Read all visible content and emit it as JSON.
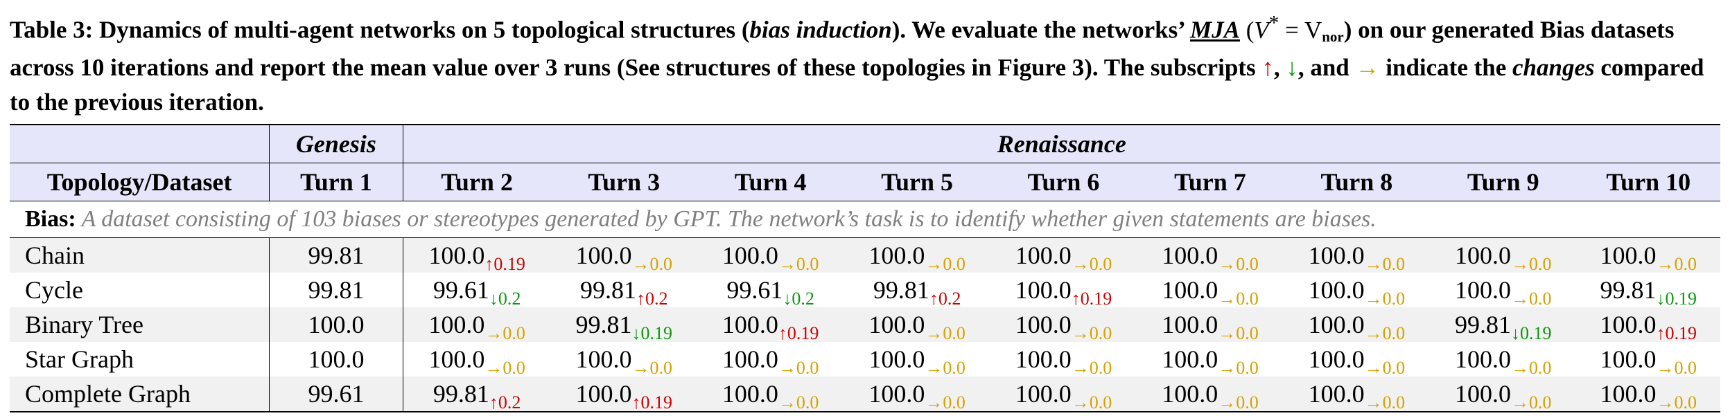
{
  "caption": {
    "label": "Table 3:",
    "part1": " Dynamics of multi-agent networks on 5 topological structures (",
    "italic1": "bias induction",
    "part2": "). We evaluate the networks’ ",
    "mja": "MJA",
    "part3a": " (",
    "vstar": "V",
    "star": "*",
    "eq": " = V",
    "nor": "nor",
    "part3b": ") on our generated Bias datasets across 10 iterations and report the mean value over 3 runs (See structures of these topologies in Figure 3). The subscripts ",
    "arrow_up": "↑",
    "comma1": ", ",
    "arrow_down": "↓",
    "and": ", and ",
    "arrow_right": "→",
    "part4": " indicate the ",
    "changes": "changes",
    "part5": " compared to the previous iteration."
  },
  "header": {
    "genesis": "Genesis",
    "renaissance": "Renaissance",
    "topology": "Topology/Dataset",
    "turns": [
      "Turn 1",
      "Turn 2",
      "Turn 3",
      "Turn 4",
      "Turn 5",
      "Turn 6",
      "Turn 7",
      "Turn 8",
      "Turn 9",
      "Turn 10"
    ]
  },
  "bias_row": {
    "label": "Bias:",
    "text": " A dataset consisting of 103 biases or stereotypes generated by GPT. The network’s task is to identify whether given statements are biases."
  },
  "rows": [
    {
      "name": "Chain",
      "turn1": "99.81",
      "cells": [
        {
          "v": "100.0",
          "a": "↑",
          "d": "0.19",
          "c": "red"
        },
        {
          "v": "100.0",
          "a": "→",
          "d": "0.0",
          "c": "yellow"
        },
        {
          "v": "100.0",
          "a": "→",
          "d": "0.0",
          "c": "yellow"
        },
        {
          "v": "100.0",
          "a": "→",
          "d": "0.0",
          "c": "yellow"
        },
        {
          "v": "100.0",
          "a": "→",
          "d": "0.0",
          "c": "yellow"
        },
        {
          "v": "100.0",
          "a": "→",
          "d": "0.0",
          "c": "yellow"
        },
        {
          "v": "100.0",
          "a": "→",
          "d": "0.0",
          "c": "yellow"
        },
        {
          "v": "100.0",
          "a": "→",
          "d": "0.0",
          "c": "yellow"
        },
        {
          "v": "100.0",
          "a": "→",
          "d": "0.0",
          "c": "yellow"
        }
      ]
    },
    {
      "name": "Cycle",
      "turn1": "99.81",
      "cells": [
        {
          "v": "99.61",
          "a": "↓",
          "d": "0.2",
          "c": "green"
        },
        {
          "v": "99.81",
          "a": "↑",
          "d": "0.2",
          "c": "red"
        },
        {
          "v": "99.61",
          "a": "↓",
          "d": "0.2",
          "c": "green"
        },
        {
          "v": "99.81",
          "a": "↑",
          "d": "0.2",
          "c": "red"
        },
        {
          "v": "100.0",
          "a": "↑",
          "d": "0.19",
          "c": "red"
        },
        {
          "v": "100.0",
          "a": "→",
          "d": "0.0",
          "c": "yellow"
        },
        {
          "v": "100.0",
          "a": "→",
          "d": "0.0",
          "c": "yellow"
        },
        {
          "v": "100.0",
          "a": "→",
          "d": "0.0",
          "c": "yellow"
        },
        {
          "v": "99.81",
          "a": "↓",
          "d": "0.19",
          "c": "green"
        }
      ]
    },
    {
      "name": "Binary Tree",
      "turn1": "100.0",
      "cells": [
        {
          "v": "100.0",
          "a": "→",
          "d": "0.0",
          "c": "yellow"
        },
        {
          "v": "99.81",
          "a": "↓",
          "d": "0.19",
          "c": "green"
        },
        {
          "v": "100.0",
          "a": "↑",
          "d": "0.19",
          "c": "red"
        },
        {
          "v": "100.0",
          "a": "→",
          "d": "0.0",
          "c": "yellow"
        },
        {
          "v": "100.0",
          "a": "→",
          "d": "0.0",
          "c": "yellow"
        },
        {
          "v": "100.0",
          "a": "→",
          "d": "0.0",
          "c": "yellow"
        },
        {
          "v": "100.0",
          "a": "→",
          "d": "0.0",
          "c": "yellow"
        },
        {
          "v": "99.81",
          "a": "↓",
          "d": "0.19",
          "c": "green"
        },
        {
          "v": "100.0",
          "a": "↑",
          "d": "0.19",
          "c": "red"
        }
      ]
    },
    {
      "name": "Star Graph",
      "turn1": "100.0",
      "cells": [
        {
          "v": "100.0",
          "a": "→",
          "d": "0.0",
          "c": "yellow"
        },
        {
          "v": "100.0",
          "a": "→",
          "d": "0.0",
          "c": "yellow"
        },
        {
          "v": "100.0",
          "a": "→",
          "d": "0.0",
          "c": "yellow"
        },
        {
          "v": "100.0",
          "a": "→",
          "d": "0.0",
          "c": "yellow"
        },
        {
          "v": "100.0",
          "a": "→",
          "d": "0.0",
          "c": "yellow"
        },
        {
          "v": "100.0",
          "a": "→",
          "d": "0.0",
          "c": "yellow"
        },
        {
          "v": "100.0",
          "a": "→",
          "d": "0.0",
          "c": "yellow"
        },
        {
          "v": "100.0",
          "a": "→",
          "d": "0.0",
          "c": "yellow"
        },
        {
          "v": "100.0",
          "a": "→",
          "d": "0.0",
          "c": "yellow"
        }
      ]
    },
    {
      "name": "Complete Graph",
      "turn1": "99.61",
      "cells": [
        {
          "v": "99.81",
          "a": "↑",
          "d": "0.2",
          "c": "red"
        },
        {
          "v": "100.0",
          "a": "↑",
          "d": "0.19",
          "c": "red"
        },
        {
          "v": "100.0",
          "a": "→",
          "d": "0.0",
          "c": "yellow"
        },
        {
          "v": "100.0",
          "a": "→",
          "d": "0.0",
          "c": "yellow"
        },
        {
          "v": "100.0",
          "a": "→",
          "d": "0.0",
          "c": "yellow"
        },
        {
          "v": "100.0",
          "a": "→",
          "d": "0.0",
          "c": "yellow"
        },
        {
          "v": "100.0",
          "a": "→",
          "d": "0.0",
          "c": "yellow"
        },
        {
          "v": "100.0",
          "a": "→",
          "d": "0.0",
          "c": "yellow"
        },
        {
          "v": "100.0",
          "a": "→",
          "d": "0.0",
          "c": "yellow"
        }
      ]
    }
  ],
  "colors": {
    "red": "#cc0000",
    "green": "#0a9a0a",
    "yellow": "#d4a200",
    "header_bg": "#e6e6fa",
    "shade_bg": "#f1f1f1"
  }
}
